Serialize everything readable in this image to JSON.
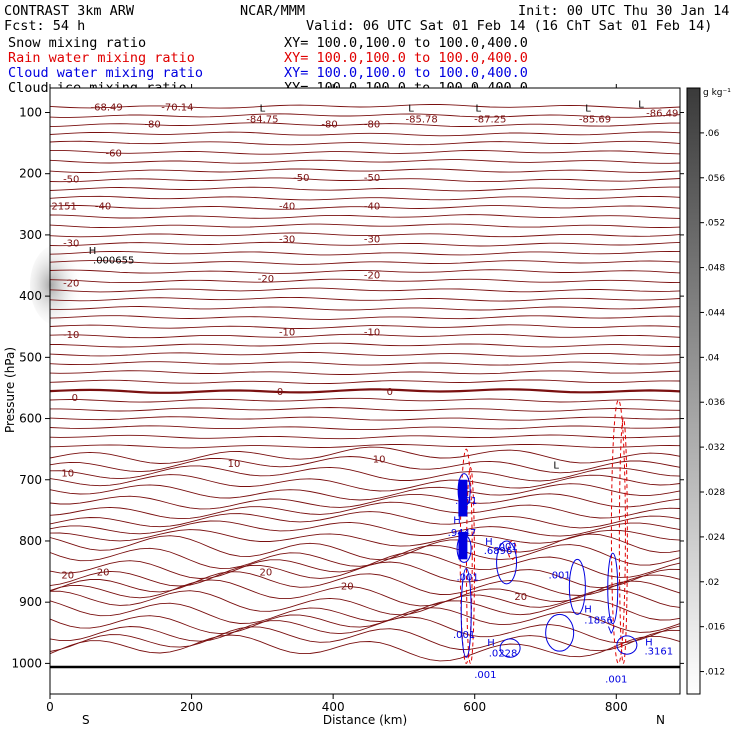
{
  "header": {
    "model": "CONTRAST  3km ARW",
    "org": "NCAR/MMM",
    "init": "Init: 00 UTC Thu 30 Jan 14",
    "fcst": "Fcst:   54 h",
    "valid": "Valid: 06 UTC Sat 01 Feb 14 (16 ChT Sat 01 Feb 14)"
  },
  "fields": [
    {
      "name": "Snow mixing ratio",
      "xy": "XY= 100.0,100.0 to 100.0,400.0",
      "color": "#000000"
    },
    {
      "name": "Rain water mixing ratio",
      "xy": "XY= 100.0,100.0 to 100.0,400.0",
      "color": "#e00000"
    },
    {
      "name": "Cloud water mixing ratio",
      "xy": "XY= 100.0,100.0 to 100.0,400.0",
      "color": "#0000e0"
    },
    {
      "name": "Cloud ice mixing ratio",
      "xy": "XY= 100.0,100.0 to 100.0,400.0",
      "color": "#000000"
    }
  ],
  "chart_data": {
    "type": "contour",
    "xlabel": "Distance (km)",
    "ylabel": "Pressure (hPa)",
    "xlim": [
      0,
      890
    ],
    "ylim": [
      1050,
      60
    ],
    "x_ticks": [
      "0",
      "200",
      "400",
      "600",
      "800"
    ],
    "y_ticks": [
      "100",
      "200",
      "300",
      "400",
      "500",
      "600",
      "700",
      "800",
      "900",
      "1000"
    ],
    "x_ends": {
      "left": "S",
      "right": "N"
    },
    "colorbar": {
      "unit": "g kg⁻¹",
      "ticks": [
        ".012",
        ".016",
        ".02",
        ".024",
        ".028",
        ".032",
        ".036",
        ".04",
        ".044",
        ".048",
        ".052",
        ".056",
        ".06"
      ],
      "range": [
        0.01,
        0.064
      ]
    },
    "temperature_labels": [
      {
        "text": "-68.49",
        "x": 80,
        "p": 90
      },
      {
        "text": "-70.14",
        "x": 180,
        "p": 90
      },
      {
        "text": "-84.75",
        "x": 300,
        "p": 110
      },
      {
        "text": "-85.78",
        "x": 525,
        "p": 110
      },
      {
        "text": "-87.25",
        "x": 622,
        "p": 110
      },
      {
        "text": "-85.69",
        "x": 770,
        "p": 110
      },
      {
        "text": "-86.49",
        "x": 865,
        "p": 100
      },
      {
        "text": "-80",
        "x": 145,
        "p": 118
      },
      {
        "text": "-80",
        "x": 395,
        "p": 118
      },
      {
        "text": "-80",
        "x": 455,
        "p": 118
      },
      {
        "text": "-60",
        "x": 90,
        "p": 165
      },
      {
        "text": "-50",
        "x": 30,
        "p": 208
      },
      {
        "text": "-50",
        "x": 355,
        "p": 205
      },
      {
        "text": "-50",
        "x": 455,
        "p": 205
      },
      {
        "text": "2151",
        "x": 20,
        "p": 252
      },
      {
        "text": "-40",
        "x": 75,
        "p": 252
      },
      {
        "text": "-40",
        "x": 335,
        "p": 252
      },
      {
        "text": "-40",
        "x": 455,
        "p": 252
      },
      {
        "text": "-30",
        "x": 30,
        "p": 312
      },
      {
        "text": "-30",
        "x": 335,
        "p": 306
      },
      {
        "text": "-30",
        "x": 455,
        "p": 306
      },
      {
        "text": "-20",
        "x": 30,
        "p": 378
      },
      {
        "text": "-20",
        "x": 305,
        "p": 370
      },
      {
        "text": "-20",
        "x": 455,
        "p": 365
      },
      {
        "text": "-10",
        "x": 30,
        "p": 462
      },
      {
        "text": "-10",
        "x": 335,
        "p": 458
      },
      {
        "text": "-10",
        "x": 455,
        "p": 458
      },
      {
        "text": "0",
        "x": 35,
        "p": 565
      },
      {
        "text": "0",
        "x": 325,
        "p": 555
      },
      {
        "text": "0",
        "x": 480,
        "p": 555
      },
      {
        "text": "10",
        "x": 25,
        "p": 688
      },
      {
        "text": "10",
        "x": 260,
        "p": 673
      },
      {
        "text": "10",
        "x": 465,
        "p": 665
      },
      {
        "text": "20",
        "x": 25,
        "p": 855
      },
      {
        "text": "20",
        "x": 75,
        "p": 850
      },
      {
        "text": "20",
        "x": 305,
        "p": 850
      },
      {
        "text": "20",
        "x": 420,
        "p": 873
      },
      {
        "text": "20",
        "x": 665,
        "p": 890
      }
    ],
    "extrema": [
      {
        "text": "L",
        "x": 300,
        "p": 92
      },
      {
        "text": "L",
        "x": 510,
        "p": 92
      },
      {
        "text": "L",
        "x": 605,
        "p": 92
      },
      {
        "text": "L",
        "x": 760,
        "p": 92
      },
      {
        "text": "L",
        "x": 835,
        "p": 85
      },
      {
        "text": "L",
        "x": 715,
        "p": 675
      },
      {
        "text": "H",
        "x": 60,
        "p": 325
      },
      {
        "text": ".000655",
        "x": 90,
        "p": 340
      },
      {
        "text": "H",
        "x": 575,
        "p": 765
      },
      {
        "text": ".9447",
        "x": 582,
        "p": 785
      },
      {
        "text": "H",
        "x": 620,
        "p": 800
      },
      {
        "text": ".6896",
        "x": 633,
        "p": 815
      },
      {
        "text": ".001",
        "x": 645,
        "p": 808
      },
      {
        "text": ".001",
        "x": 588,
        "p": 733
      },
      {
        "text": ".001",
        "x": 585,
        "p": 952
      },
      {
        "text": ".001",
        "x": 590,
        "p": 858
      },
      {
        "text": ".001",
        "x": 720,
        "p": 855
      },
      {
        "text": "H",
        "x": 760,
        "p": 910
      },
      {
        "text": ".1856",
        "x": 775,
        "p": 928
      },
      {
        "text": "H",
        "x": 623,
        "p": 965
      },
      {
        "text": ".0228",
        "x": 640,
        "p": 982
      },
      {
        "text": "H",
        "x": 846,
        "p": 964
      },
      {
        "text": ".3161",
        "x": 860,
        "p": 979
      },
      {
        "text": "V",
        "x": 793,
        "p": 945
      },
      {
        "text": ".001",
        "x": 800,
        "p": 1025
      },
      {
        "text": ".001",
        "x": 615,
        "p": 1017
      }
    ]
  }
}
